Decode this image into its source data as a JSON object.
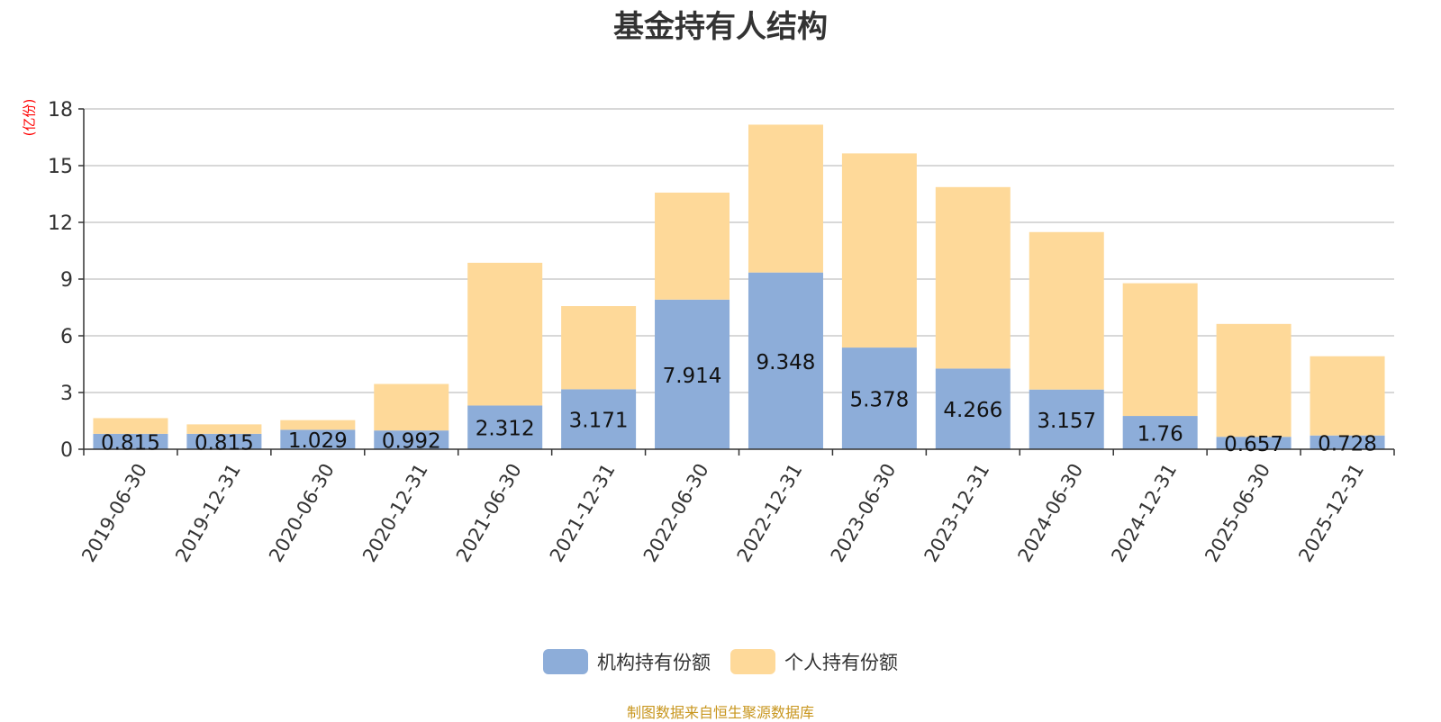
{
  "title": "基金持有人结构",
  "unit_label": "(亿份)",
  "source": "制图数据来自恒生聚源数据库",
  "colors": {
    "institutional": "#8dadd9",
    "individual": "#fed999",
    "grid": "#cccccc",
    "axis": "#333333",
    "unit": "#ff0000",
    "source": "#c8961e"
  },
  "legend": [
    {
      "name": "机构持有份额",
      "color": "#8dadd9"
    },
    {
      "name": "个人持有份额",
      "color": "#fed999"
    }
  ],
  "chart_data": {
    "type": "bar",
    "stacked": true,
    "title": "基金持有人结构",
    "ylabel": "(亿份)",
    "ylim": [
      0,
      18
    ],
    "yticks": [
      0,
      3,
      6,
      9,
      12,
      15,
      18
    ],
    "grid": true,
    "legend_position": "bottom-center",
    "categories": [
      "2019-06-30",
      "2019-12-31",
      "2020-06-30",
      "2020-12-31",
      "2021-06-30",
      "2021-12-31",
      "2022-06-30",
      "2022-12-31",
      "2023-06-30",
      "2023-12-31",
      "2024-06-30",
      "2024-12-31",
      "2025-06-30",
      "2025-12-31"
    ],
    "series": [
      {
        "name": "机构持有份额",
        "values": [
          0.815,
          0.815,
          1.029,
          0.992,
          2.312,
          3.171,
          7.914,
          9.348,
          5.378,
          4.266,
          3.157,
          1.76,
          0.657,
          0.728
        ],
        "labels": [
          "0.815",
          "0.815",
          "1.029",
          "0.992",
          "2.312",
          "3.171",
          "7.914",
          "9.348",
          "5.378",
          "4.266",
          "3.157",
          "1.76",
          "0.657",
          "0.728"
        ]
      },
      {
        "name": "个人持有份额",
        "values": [
          0.83,
          0.5,
          0.51,
          2.46,
          7.55,
          4.4,
          5.66,
          7.82,
          10.27,
          9.6,
          8.33,
          7.02,
          5.97,
          4.19
        ]
      }
    ]
  }
}
